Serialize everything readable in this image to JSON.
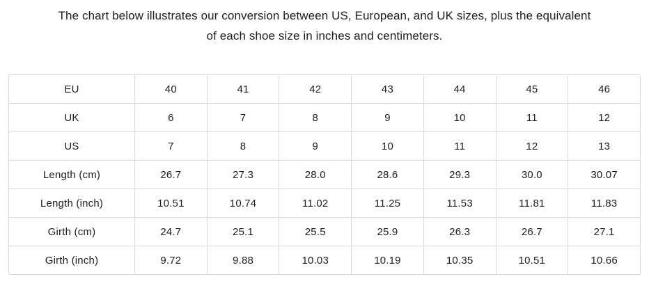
{
  "intro": {
    "line1": "The chart below illustrates our conversion between US, European, and UK sizes, plus the equivalent",
    "line2": "of each shoe size in inches and centimeters."
  },
  "table": {
    "rows": [
      {
        "label": "EU",
        "values": [
          "40",
          "41",
          "42",
          "43",
          "44",
          "45",
          "46"
        ]
      },
      {
        "label": "UK",
        "values": [
          "6",
          "7",
          "8",
          "9",
          "10",
          "11",
          "12"
        ]
      },
      {
        "label": "US",
        "values": [
          "7",
          "8",
          "9",
          "10",
          "11",
          "12",
          "13"
        ]
      },
      {
        "label": "Length (cm)",
        "values": [
          "26.7",
          "27.3",
          "28.0",
          "28.6",
          "29.3",
          "30.0",
          "30.07"
        ]
      },
      {
        "label": "Length (inch)",
        "values": [
          "10.51",
          "10.74",
          "11.02",
          "11.25",
          "11.53",
          "11.81",
          "11.83"
        ]
      },
      {
        "label": "Girth (cm)",
        "values": [
          "24.7",
          "25.1",
          "25.5",
          "25.9",
          "26.3",
          "26.7",
          "27.1"
        ]
      },
      {
        "label": "Girth (inch)",
        "values": [
          "9.72",
          "9.88",
          "10.03",
          "10.19",
          "10.35",
          "10.51",
          "10.66"
        ]
      }
    ]
  },
  "colors": {
    "text": "#1d1d1d",
    "table_border": "#d9d9d9",
    "background": "#ffffff"
  }
}
